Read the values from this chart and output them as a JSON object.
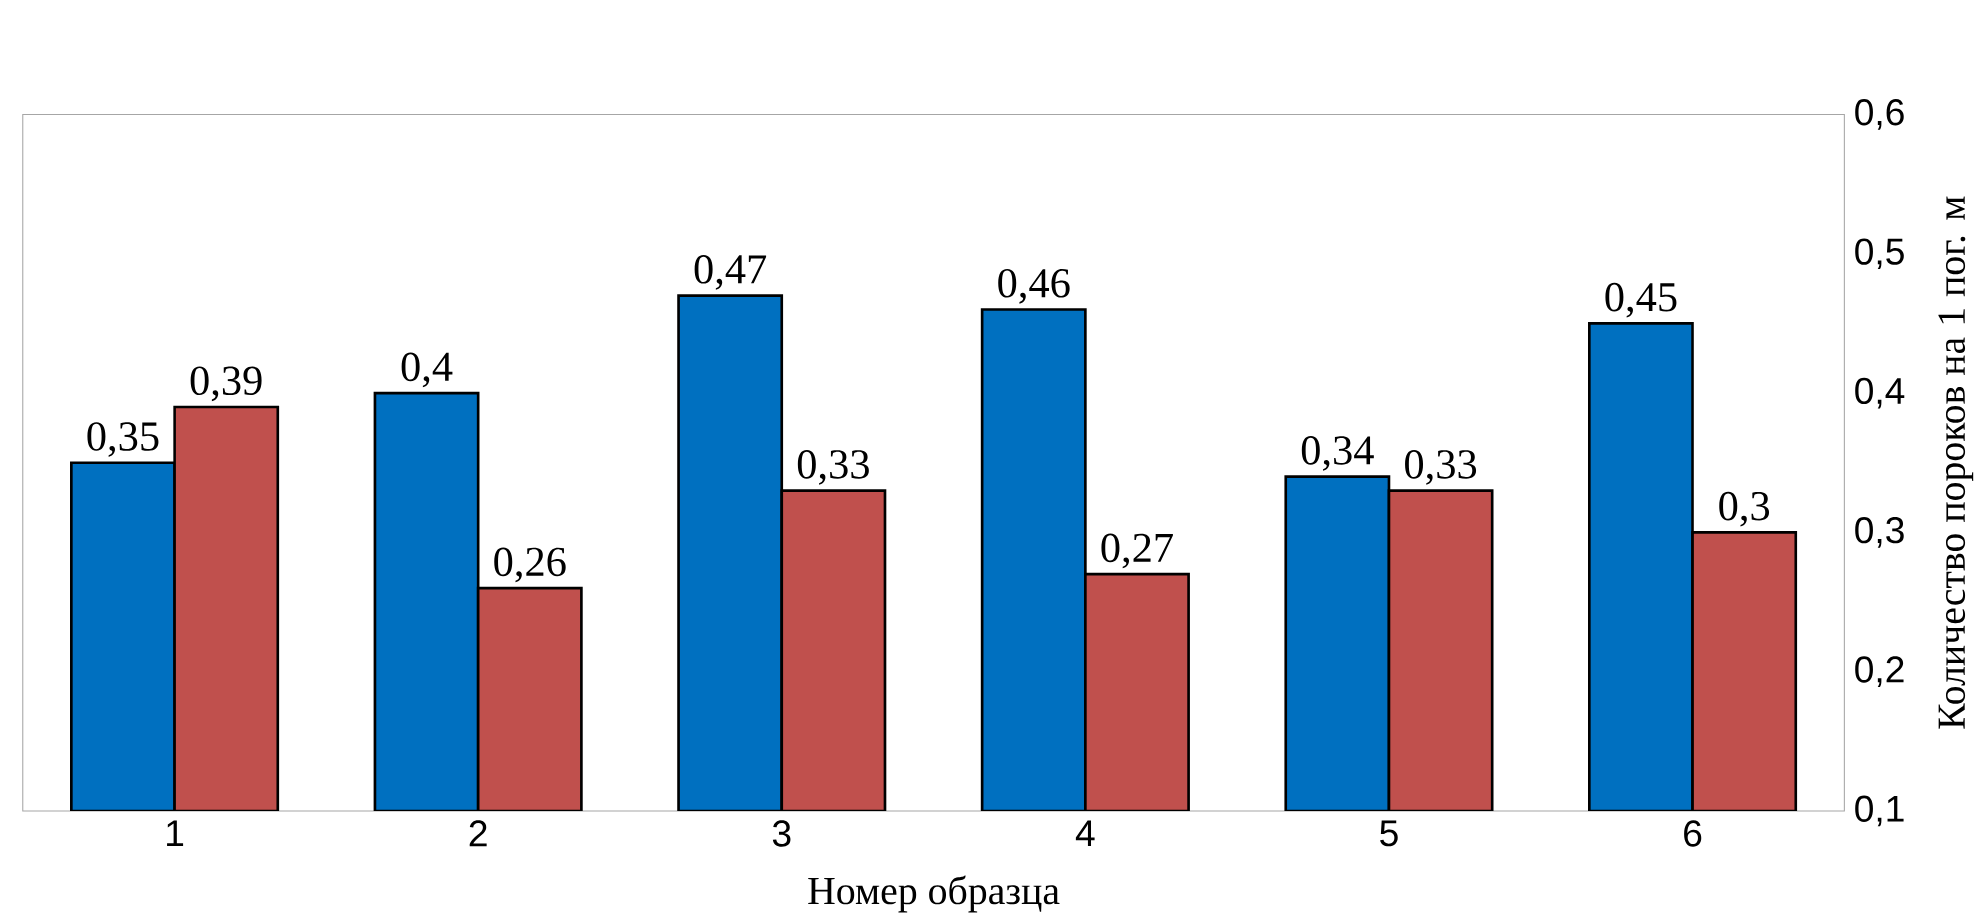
{
  "chart_data": {
    "type": "bar",
    "xlabel": "Номер образца",
    "ylabel": "Количество пороков на 1 пог. м",
    "categories": [
      "1",
      "2",
      "3",
      "4",
      "5",
      "6"
    ],
    "series": [
      {
        "color": "#0070c0",
        "values": [
          0.35,
          0.4,
          0.47,
          0.46,
          0.34,
          0.45
        ],
        "value_labels": [
          "0,35",
          "0,4",
          "0,47",
          "0,46",
          "0,34",
          "0,45"
        ]
      },
      {
        "color": "#c0504d",
        "values": [
          0.39,
          0.26,
          0.33,
          0.27,
          0.33,
          0.3
        ],
        "value_labels": [
          "0,39",
          "0,26",
          "0,33",
          "0,27",
          "0,33",
          "0,3"
        ]
      }
    ],
    "ylim": [
      0.1,
      0.6
    ],
    "yticks": [
      {
        "value": 0.1,
        "label": "0,1"
      },
      {
        "value": 0.2,
        "label": "0,2"
      },
      {
        "value": 0.3,
        "label": "0,3"
      },
      {
        "value": 0.4,
        "label": "0,4"
      },
      {
        "value": 0.5,
        "label": "0,5"
      },
      {
        "value": 0.6,
        "label": "0,6"
      }
    ],
    "grid": false
  }
}
